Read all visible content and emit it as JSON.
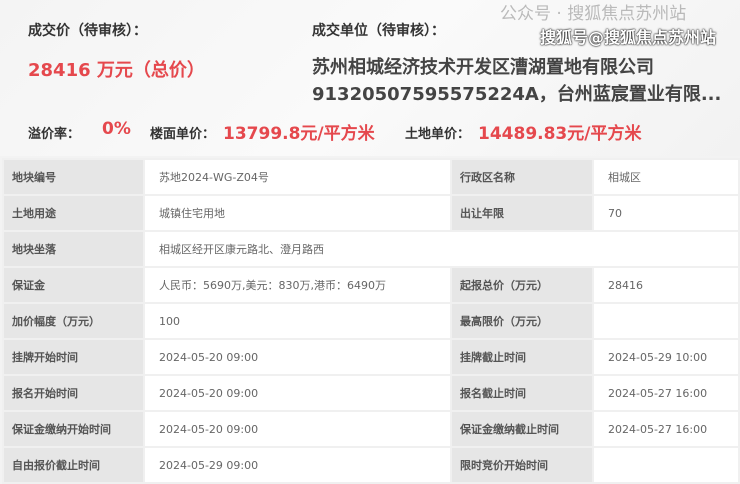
{
  "summary": {
    "price_label": "成交价（待审核）：",
    "price_value": "28416 万元（总价）",
    "winner_label": "成交单位（待审核）：",
    "winner_line1": "苏州相城经济技术开发区漕湖置地有限公司",
    "winner_line2": "91320507595575224A，台州蓝宸置业有限...",
    "premium_label": "溢价率：",
    "premium_value": "0%",
    "floor_price_label": "楼面单价：",
    "floor_price_value": "13799.8元/平方米",
    "land_price_label": "土地单价：",
    "land_price_value": "14489.83元/平方米"
  },
  "table": [
    {
      "k1": "地块编号",
      "v1": "苏地2024-WG-Z04号",
      "k2": "行政区名称",
      "v2": "相城区"
    },
    {
      "k1": "土地用途",
      "v1": "城镇住宅用地",
      "k2": "出让年限",
      "v2": "70"
    },
    {
      "k1": "地块坐落",
      "v1": "相城区经开区康元路北、澄月路西"
    },
    {
      "k1": "保证金",
      "v1": "人民币：5690万,美元：830万,港币：6490万",
      "k2": "起报总价（万元）",
      "v2": "28416"
    },
    {
      "k1": "加价幅度（万元）",
      "v1": "100",
      "k2": "最高限价（万元）",
      "v2": ""
    },
    {
      "k1": "挂牌开始时间",
      "v1": "2024-05-20 09:00",
      "k2": "挂牌截止时间",
      "v2": "2024-05-29 10:00"
    },
    {
      "k1": "报名开始时间",
      "v1": "2024-05-20 09:00",
      "k2": "报名截止时间",
      "v2": "2024-05-27 16:00"
    },
    {
      "k1": "保证金缴纳开始时间",
      "v1": "2024-05-20 09:00",
      "k2": "保证金缴纳截止时间",
      "v2": "2024-05-27 16:00"
    },
    {
      "k1": "自由报价截止时间",
      "v1": "2024-05-29 09:00",
      "k2": "限时竞价开始时间",
      "v2": ""
    }
  ],
  "watermark": {
    "line1": "公众号 · 搜狐焦点苏州站",
    "line2": "搜狐号@搜狐焦点苏州站"
  },
  "colors": {
    "accent": "#e5484d"
  }
}
